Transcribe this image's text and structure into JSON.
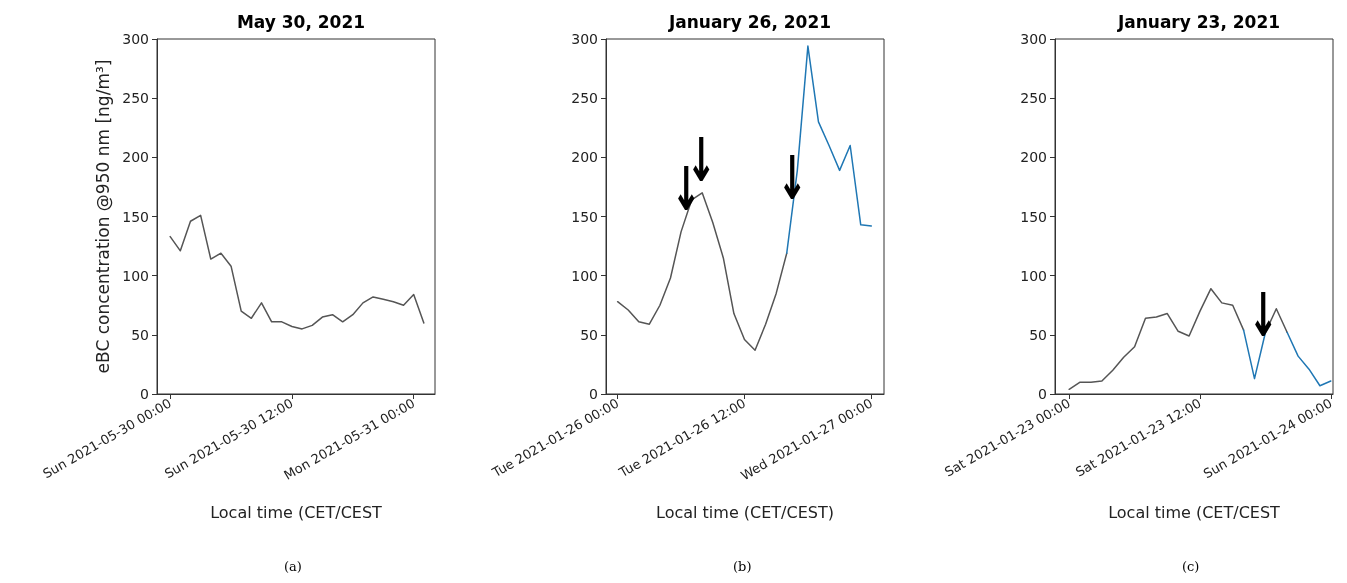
{
  "chart_data": [
    {
      "type": "line",
      "title": "May 30, 2021",
      "xlabel": "Local time (CET/CEST",
      "ylabel": "eBC concentration @950 nm [ng/m³]",
      "x": [
        "2021-05-30T00:00",
        "2021-05-30T01:00",
        "2021-05-30T02:00",
        "2021-05-30T03:00",
        "2021-05-30T04:00",
        "2021-05-30T05:00",
        "2021-05-30T06:00",
        "2021-05-30T07:00",
        "2021-05-30T08:00",
        "2021-05-30T09:00",
        "2021-05-30T10:00",
        "2021-05-30T11:00",
        "2021-05-30T12:00",
        "2021-05-30T13:00",
        "2021-05-30T14:00",
        "2021-05-30T15:00",
        "2021-05-30T16:00",
        "2021-05-30T17:00",
        "2021-05-30T18:00",
        "2021-05-30T19:00",
        "2021-05-30T20:00",
        "2021-05-30T21:00",
        "2021-05-30T22:00",
        "2021-05-30T23:00",
        "2021-05-31T00:00",
        "2021-05-31T01:00"
      ],
      "xlim": [
        "2021-05-29T22:42",
        "2021-05-31T02:06"
      ],
      "xticks": [
        {
          "value": "2021-05-30T00:00",
          "label": "Sun 2021-05-30 00:00"
        },
        {
          "value": "2021-05-30T12:00",
          "label": "Sun 2021-05-30 12:00"
        },
        {
          "value": "2021-05-31T00:00",
          "label": "Mon 2021-05-31 00:00"
        }
      ],
      "ylim": [
        0,
        300
      ],
      "yticks": [
        0,
        50,
        100,
        150,
        200,
        250,
        300
      ],
      "marker": "none",
      "line_style": "solid",
      "series": [
        {
          "color": "#555555",
          "values": [
            133,
            121,
            146,
            151,
            114,
            119,
            108,
            70,
            64,
            77,
            61,
            61,
            57,
            55,
            58,
            65,
            67,
            61,
            67,
            77,
            82,
            80,
            78,
            75,
            84,
            60
          ]
        }
      ],
      "annotations": [
        "(a)"
      ]
    },
    {
      "type": "line",
      "title": "January 26, 2021",
      "xlabel": "Local time (CET/CEST)",
      "x": [
        "2021-01-26T00:00",
        "2021-01-26T01:00",
        "2021-01-26T02:00",
        "2021-01-26T03:00",
        "2021-01-26T04:00",
        "2021-01-26T05:00",
        "2021-01-26T06:00",
        "2021-01-26T07:00",
        "2021-01-26T08:00",
        "2021-01-26T09:00",
        "2021-01-26T10:00",
        "2021-01-26T11:00",
        "2021-01-26T12:00",
        "2021-01-26T13:00",
        "2021-01-26T14:00",
        "2021-01-26T15:00",
        "2021-01-26T16:00",
        "2021-01-26T17:00",
        "2021-01-26T18:00",
        "2021-01-26T19:00",
        "2021-01-26T20:00",
        "2021-01-26T21:00",
        "2021-01-26T22:00",
        "2021-01-26T23:00",
        "2021-01-27T00:00"
      ],
      "xlim": [
        "2021-01-25T22:54",
        "2021-01-27T01:12"
      ],
      "xticks": [
        {
          "value": "2021-01-26T00:00",
          "label": "Tue 2021-01-26 00:00"
        },
        {
          "value": "2021-01-26T12:00",
          "label": "Tue 2021-01-26 12:00"
        },
        {
          "value": "2021-01-27T00:00",
          "label": "Wed 2021-01-27 00:00"
        }
      ],
      "ylim": [
        0,
        300
      ],
      "yticks": [
        0,
        50,
        100,
        150,
        200,
        250,
        300
      ],
      "marker": "none",
      "line_style": "solid",
      "series": [
        {
          "color": "#555555",
          "values": [
            78,
            71,
            61,
            59,
            75,
            98,
            137,
            164,
            170,
            145,
            115,
            68,
            46,
            37,
            59,
            85,
            119,
            null,
            null,
            null,
            null,
            null,
            null,
            null,
            null
          ]
        },
        {
          "color": "#1f77b4",
          "values": [
            null,
            null,
            null,
            null,
            null,
            null,
            null,
            null,
            null,
            null,
            null,
            null,
            null,
            null,
            null,
            null,
            119,
            189,
            294,
            230,
            210,
            189,
            210,
            143,
            142
          ]
        }
      ],
      "annotations": [
        "(b)",
        {
          "text": "↓",
          "x": "2021-01-26T06:12",
          "y": 149
        },
        {
          "text": "↓",
          "x": "2021-01-26T07:36",
          "y": 173
        },
        {
          "text": "↓",
          "x": "2021-01-26T16:12",
          "y": 158
        }
      ]
    },
    {
      "type": "line",
      "title": "January 23, 2021",
      "xlabel": "Local time (CET/CEST",
      "x": [
        "2021-01-23T00:00",
        "2021-01-23T01:00",
        "2021-01-23T02:00",
        "2021-01-23T03:00",
        "2021-01-23T04:00",
        "2021-01-23T05:00",
        "2021-01-23T06:00",
        "2021-01-23T07:00",
        "2021-01-23T08:00",
        "2021-01-23T09:00",
        "2021-01-23T10:00",
        "2021-01-23T11:00",
        "2021-01-23T12:00",
        "2021-01-23T13:00",
        "2021-01-23T14:00",
        "2021-01-23T15:00",
        "2021-01-23T16:00",
        "2021-01-23T17:00",
        "2021-01-23T18:00",
        "2021-01-23T19:00",
        "2021-01-23T20:00",
        "2021-01-23T21:00",
        "2021-01-23T22:00",
        "2021-01-23T23:00",
        "2021-01-24T00:00"
      ],
      "xlim": [
        "2021-01-22T22:42",
        "2021-01-24T00:12"
      ],
      "xticks": [
        {
          "value": "2021-01-23T00:00",
          "label": "Sat 2021-01-23 00:00"
        },
        {
          "value": "2021-01-23T12:00",
          "label": "Sat 2021-01-23 12:00"
        },
        {
          "value": "2021-01-24T00:00",
          "label": "Sun 2021-01-24 00:00"
        }
      ],
      "ylim": [
        0,
        300
      ],
      "yticks": [
        0,
        50,
        100,
        150,
        200,
        250,
        300
      ],
      "marker": "none",
      "line_style": "solid",
      "series": [
        {
          "color": "#555555",
          "values": [
            4,
            10,
            10,
            11,
            20,
            31,
            40,
            64,
            65,
            68,
            53,
            49,
            70,
            89,
            77,
            75,
            54,
            null,
            52,
            72,
            52,
            null,
            null,
            null,
            null
          ]
        },
        {
          "color": "#1f77b4",
          "values": [
            null,
            null,
            null,
            null,
            null,
            null,
            null,
            null,
            null,
            null,
            null,
            null,
            null,
            null,
            null,
            null,
            54,
            13,
            52,
            null,
            52,
            32,
            21,
            7,
            11
          ]
        }
      ],
      "annotations": [
        "(c)",
        {
          "text": "↓",
          "x": "2021-01-23T17:30",
          "y": 42
        }
      ]
    }
  ]
}
